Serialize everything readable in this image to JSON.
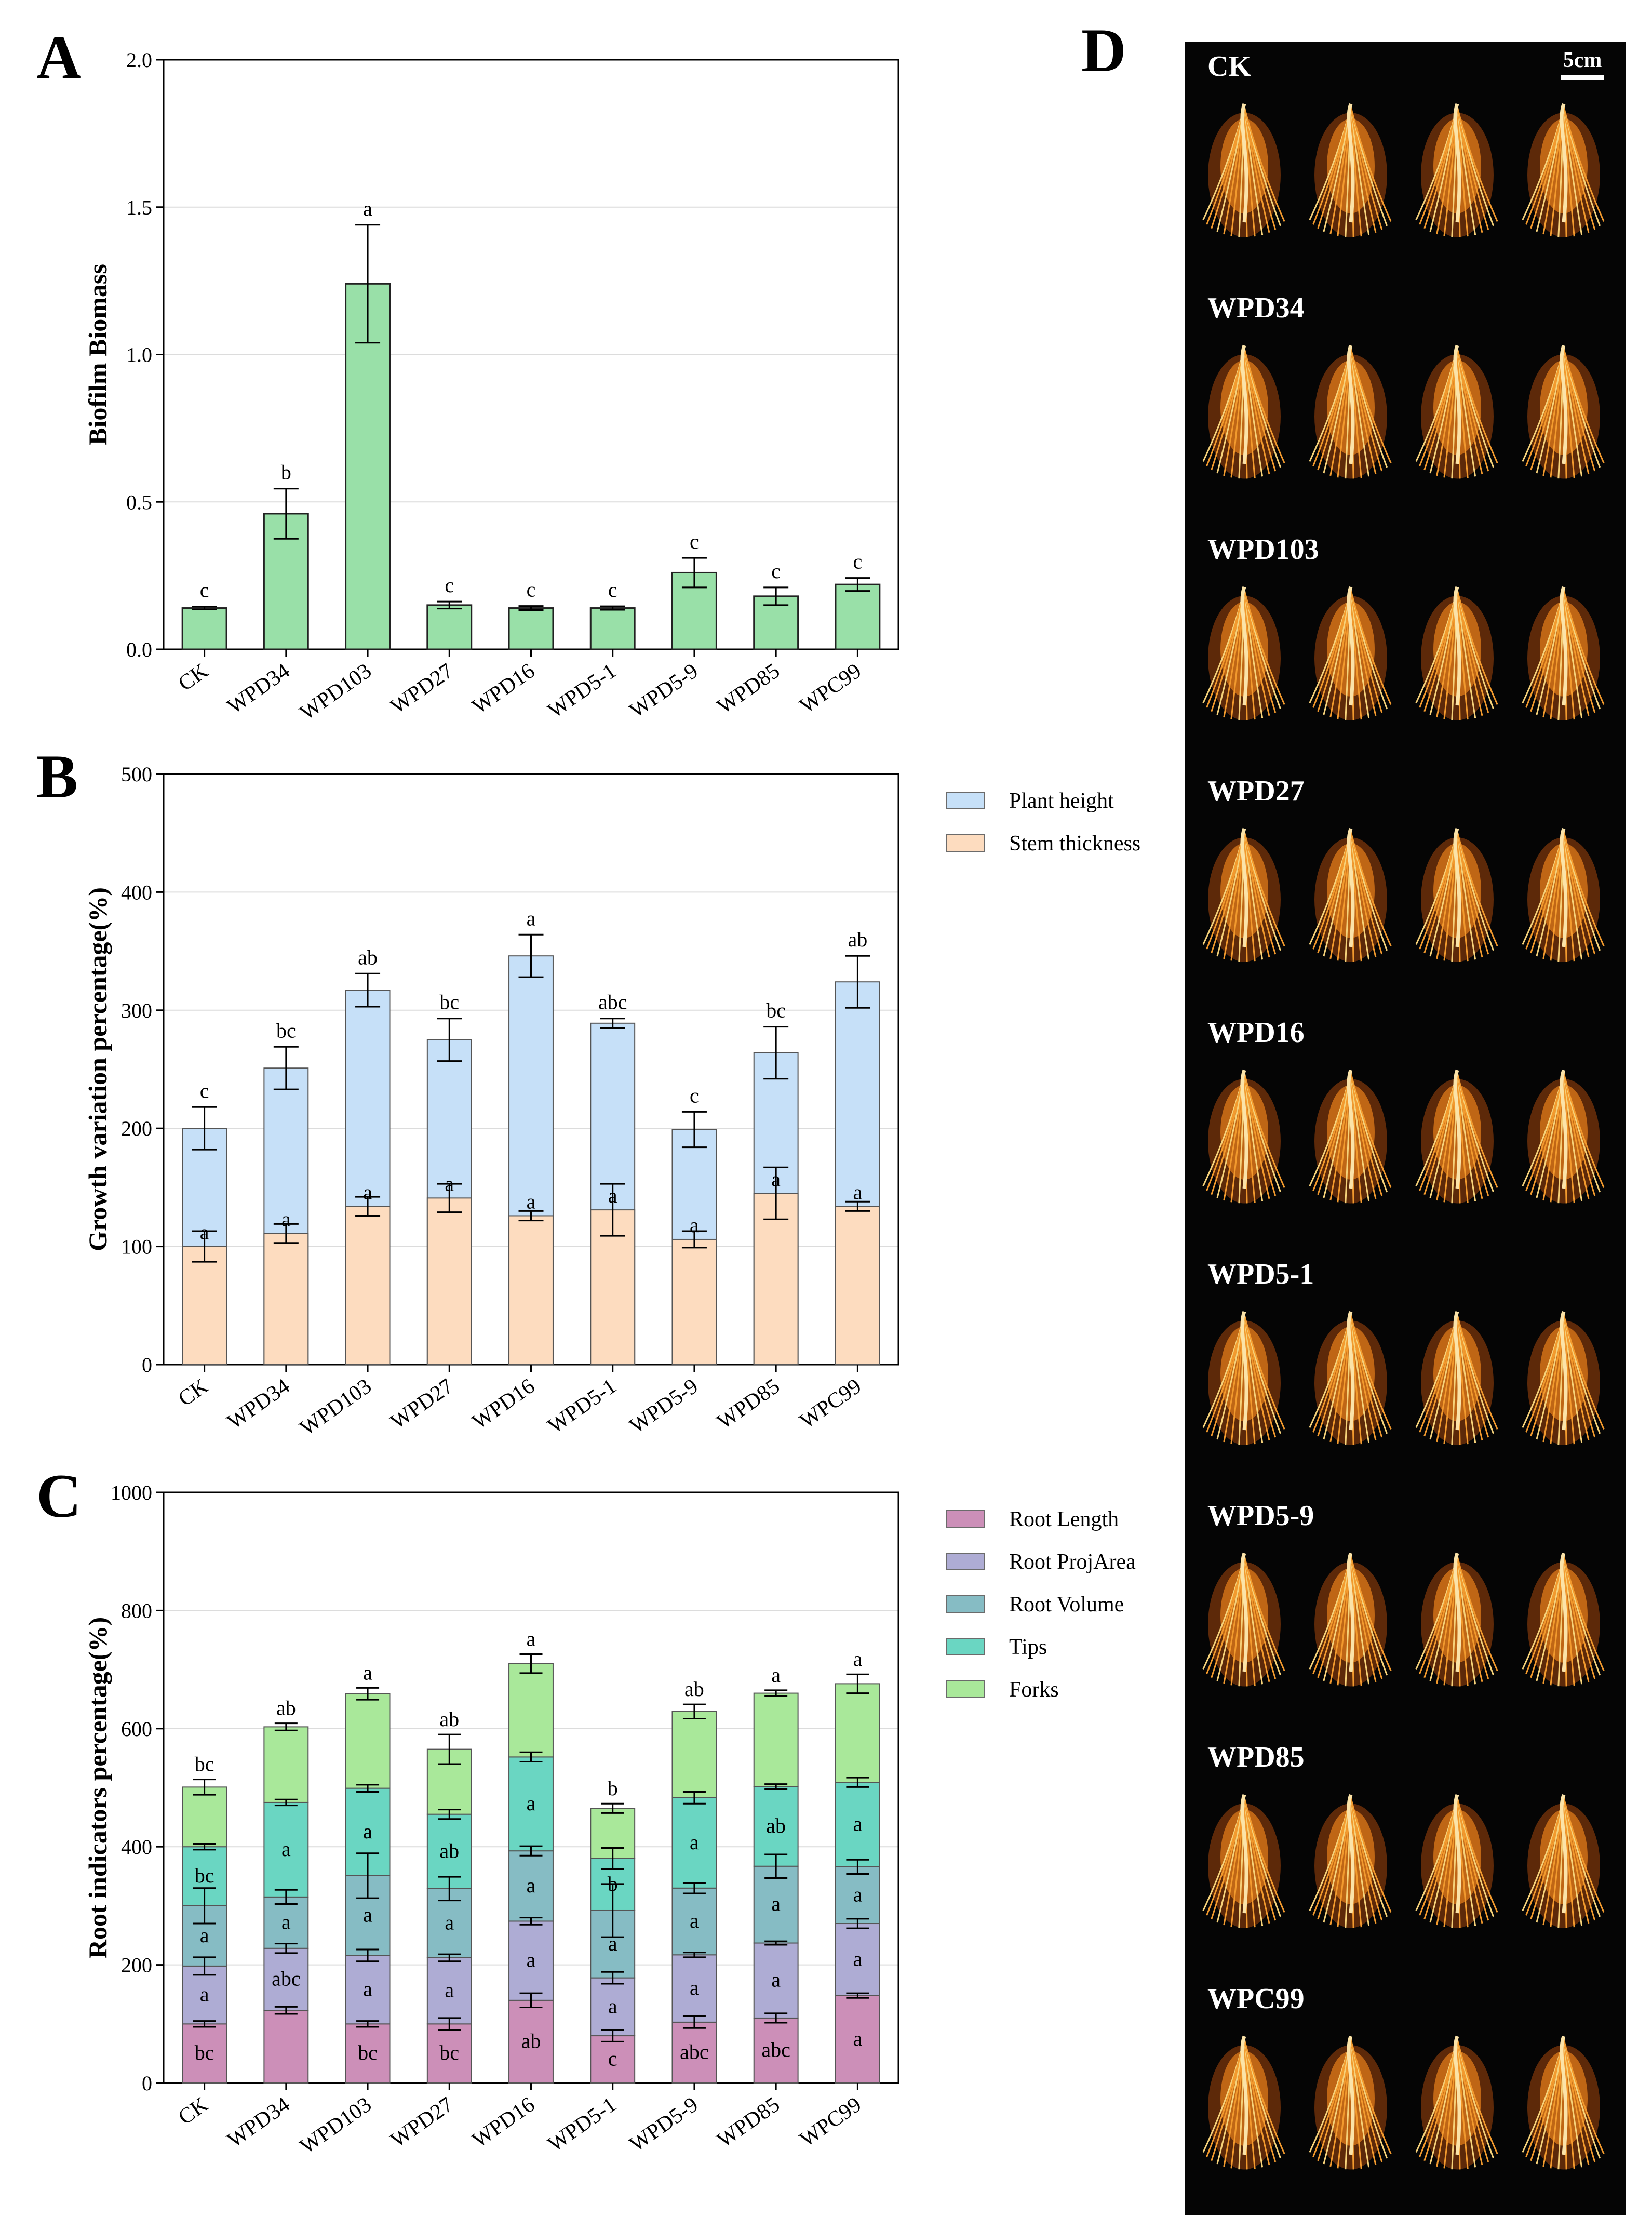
{
  "figure_letters": {
    "a": "A",
    "b": "B",
    "c": "C",
    "d": "D"
  },
  "colors": {
    "biofilm": "#99e0a8",
    "plant_height": "#c6e0f8",
    "stem_thickness": "#fddcbf",
    "root_length": "#cc8fb8",
    "root_projarea": "#aeacd4",
    "root_volume": "#86bcc4",
    "tips": "#6ad6c2",
    "forks": "#a9e89a",
    "grid": "#dcdcdc"
  },
  "chart_data": [
    {
      "id": "A",
      "type": "bar",
      "categories": [
        "CK",
        "WPD34",
        "WPD103",
        "WPD27",
        "WPD16",
        "WPD5-1",
        "WPD5-9",
        "WPD85",
        "WPC99"
      ],
      "values": [
        0.14,
        0.46,
        1.24,
        0.15,
        0.14,
        0.14,
        0.26,
        0.18,
        0.22
      ],
      "errors": [
        0.005,
        0.085,
        0.2,
        0.012,
        0.007,
        0.006,
        0.05,
        0.03,
        0.022
      ],
      "labels": [
        "c",
        "b",
        "a",
        "c",
        "c",
        "c",
        "c",
        "c",
        "c"
      ],
      "ylabel": "Biofilm Biomass",
      "ylim": [
        0,
        2.0
      ],
      "yticks": [
        "0.0",
        "0.5",
        "1.0",
        "1.5",
        "2.0"
      ],
      "grid": true
    },
    {
      "id": "B",
      "type": "bar",
      "stacked": false,
      "categories": [
        "CK",
        "WPD34",
        "WPD103",
        "WPD27",
        "WPD16",
        "WPD5-1",
        "WPD5-9",
        "WPD85",
        "WPC99"
      ],
      "series": [
        {
          "name": "Plant height",
          "values": [
            200,
            251,
            317,
            275,
            346,
            289,
            199,
            264,
            324
          ],
          "errors": [
            18,
            18,
            14,
            18,
            18,
            4,
            15,
            22,
            22
          ],
          "labels": [
            "c",
            "bc",
            "ab",
            "bc",
            "a",
            "abc",
            "c",
            "bc",
            "ab"
          ]
        },
        {
          "name": "Stem thickness",
          "values": [
            100,
            111,
            134,
            141,
            126,
            131,
            106,
            145,
            134
          ],
          "errors": [
            13,
            8,
            8,
            12,
            4,
            22,
            7,
            22,
            4
          ],
          "labels": [
            "a",
            "a",
            "a",
            "a",
            "a",
            "a",
            "a",
            "a",
            "a"
          ]
        }
      ],
      "ylabel": "Growth variation percentage(%)",
      "ylim": [
        0,
        500
      ],
      "yticks": [
        "0",
        "100",
        "200",
        "300",
        "400",
        "500"
      ],
      "legend": "top-right outside",
      "grid": true
    },
    {
      "id": "C",
      "type": "bar",
      "stacked": true,
      "categories": [
        "CK",
        "WPD34",
        "WPD103",
        "WPD27",
        "WPD16",
        "WPD5-1",
        "WPD5-9",
        "WPD85",
        "WPC99"
      ],
      "series": [
        {
          "name": "Root Length",
          "values": [
            100,
            123,
            100,
            100,
            140,
            80,
            103,
            110,
            148
          ],
          "errors": [
            5,
            6,
            5,
            10,
            12,
            10,
            10,
            8,
            4
          ],
          "labels": [
            "bc",
            "",
            "bc",
            "bc",
            "ab",
            "c",
            "abc",
            "abc",
            "a"
          ]
        },
        {
          "name": "Root ProjArea",
          "values": [
            98,
            105,
            116,
            112,
            134,
            98,
            114,
            127,
            122
          ],
          "errors": [
            15,
            8,
            10,
            6,
            6,
            10,
            4,
            3,
            8
          ],
          "labels": [
            "a",
            "abc",
            "a",
            "a",
            "a",
            "a",
            "a",
            "a",
            "a"
          ]
        },
        {
          "name": "Root Volume",
          "values": [
            102,
            87,
            135,
            117,
            119,
            114,
            113,
            130,
            96
          ],
          "errors": [
            30,
            12,
            38,
            20,
            8,
            45,
            9,
            20,
            12
          ],
          "labels": [
            "a",
            "a",
            "a",
            "a",
            "a",
            "a",
            "a",
            "a",
            "a"
          ]
        },
        {
          "name": "Tips",
          "values": [
            100,
            160,
            148,
            126,
            159,
            88,
            153,
            135,
            143
          ],
          "errors": [
            5,
            5,
            6,
            8,
            8,
            18,
            10,
            4,
            8
          ],
          "labels": [
            "bc",
            "a",
            "a",
            "ab",
            "a",
            "b",
            "a",
            "ab",
            "a"
          ]
        },
        {
          "name": "Forks",
          "values": [
            101,
            128,
            160,
            110,
            158,
            85,
            146,
            158,
            167
          ],
          "errors": [
            13,
            6,
            10,
            25,
            16,
            8,
            12,
            5,
            16
          ],
          "labels": [
            "bc",
            "ab",
            "a",
            "ab",
            "a",
            "b",
            "ab",
            "a",
            "a"
          ]
        }
      ],
      "ylabel": "Root indicators percentage(%)",
      "ylim": [
        0,
        1000
      ],
      "yticks": [
        "0",
        "200",
        "400",
        "600",
        "800",
        "1000"
      ],
      "legend": "top-right outside",
      "grid": true
    }
  ],
  "photo_panel": {
    "scale_label": "5cm",
    "rows": [
      "CK",
      "WPD34",
      "WPD103",
      "WPD27",
      "WPD16",
      "WPD5-1",
      "WPD5-9",
      "WPD85",
      "WPC99"
    ]
  }
}
